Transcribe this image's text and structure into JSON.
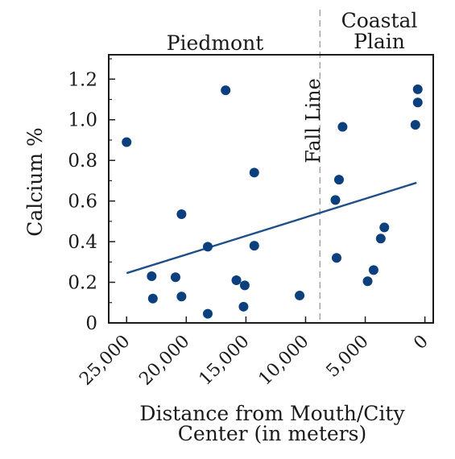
{
  "chart_data": {
    "type": "scatter",
    "title": "",
    "xlabel_lines": [
      "Distance from Mouth/City",
      "Center (in meters)"
    ],
    "ylabel": "Calcium %",
    "x_reversed": true,
    "xlim": [
      26500,
      -700
    ],
    "ylim": [
      0,
      1.32
    ],
    "x_ticks": [
      25000,
      20000,
      15000,
      10000,
      5000,
      0
    ],
    "x_tick_labels": [
      "25,000",
      "20,000",
      "15,000",
      "10,000",
      "5,000",
      "0"
    ],
    "y_ticks": [
      0,
      0.2,
      0.4,
      0.6,
      0.8,
      1.0,
      1.2
    ],
    "y_tick_labels": [
      "0",
      "0.2",
      "0.4",
      "0.6",
      "0.8",
      "1.0",
      "1.2"
    ],
    "y_minor_ticks": [
      0.1,
      0.3,
      0.5,
      0.7,
      0.9,
      1.1,
      1.3
    ],
    "grid": false,
    "points": [
      {
        "x": 25000,
        "y": 0.89
      },
      {
        "x": 22900,
        "y": 0.23
      },
      {
        "x": 22800,
        "y": 0.12
      },
      {
        "x": 20900,
        "y": 0.225
      },
      {
        "x": 20400,
        "y": 0.535
      },
      {
        "x": 20400,
        "y": 0.13
      },
      {
        "x": 18200,
        "y": 0.375
      },
      {
        "x": 18200,
        "y": 0.045
      },
      {
        "x": 16700,
        "y": 1.145
      },
      {
        "x": 15800,
        "y": 0.21
      },
      {
        "x": 15100,
        "y": 0.185
      },
      {
        "x": 15200,
        "y": 0.08
      },
      {
        "x": 14300,
        "y": 0.38
      },
      {
        "x": 14300,
        "y": 0.74
      },
      {
        "x": 10500,
        "y": 0.135
      },
      {
        "x": 7500,
        "y": 0.605
      },
      {
        "x": 7200,
        "y": 0.705
      },
      {
        "x": 6900,
        "y": 0.965
      },
      {
        "x": 7400,
        "y": 0.32
      },
      {
        "x": 4800,
        "y": 0.205
      },
      {
        "x": 4300,
        "y": 0.26
      },
      {
        "x": 3700,
        "y": 0.415
      },
      {
        "x": 3400,
        "y": 0.47
      },
      {
        "x": 800,
        "y": 0.975
      },
      {
        "x": 600,
        "y": 1.15
      },
      {
        "x": 600,
        "y": 1.085
      }
    ],
    "trendline": {
      "x1": 25000,
      "y1": 0.245,
      "x2": 700,
      "y2": 0.69
    },
    "fall_line": {
      "x": 8800,
      "label": "Fall Line"
    },
    "region_labels": {
      "piedmont": "Piedmont",
      "coastal_lines": [
        "Coastal",
        "Plain"
      ]
    },
    "colors": {
      "points": "#0c3f7d",
      "trendline": "#1d4f8a",
      "divider": "#999999",
      "axis": "#1a1a1a"
    }
  }
}
